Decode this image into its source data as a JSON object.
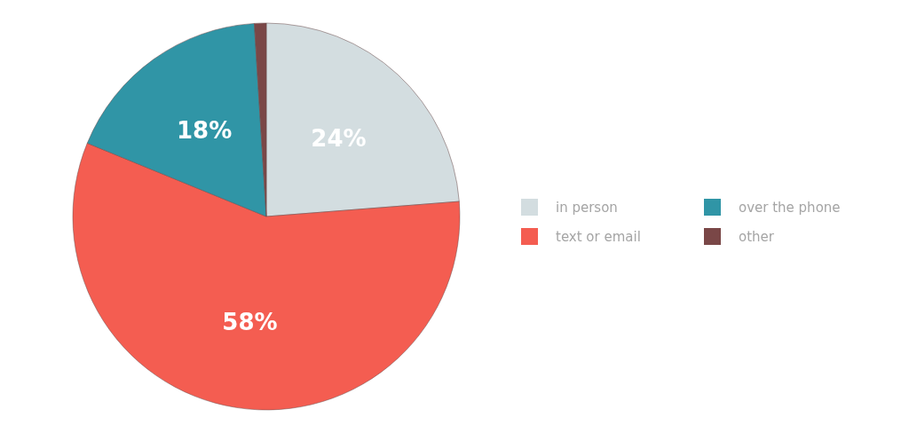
{
  "chart_data": {
    "type": "pie",
    "categories": [
      "in person",
      "text or email",
      "over the phone",
      "other"
    ],
    "values": [
      24,
      58,
      18,
      1
    ],
    "value_labels": [
      "24%",
      "58%",
      "18%",
      null
    ],
    "colors": [
      "#d3dde0",
      "#f45d51",
      "#3095a6",
      "#7a4747"
    ],
    "legend": "right"
  }
}
